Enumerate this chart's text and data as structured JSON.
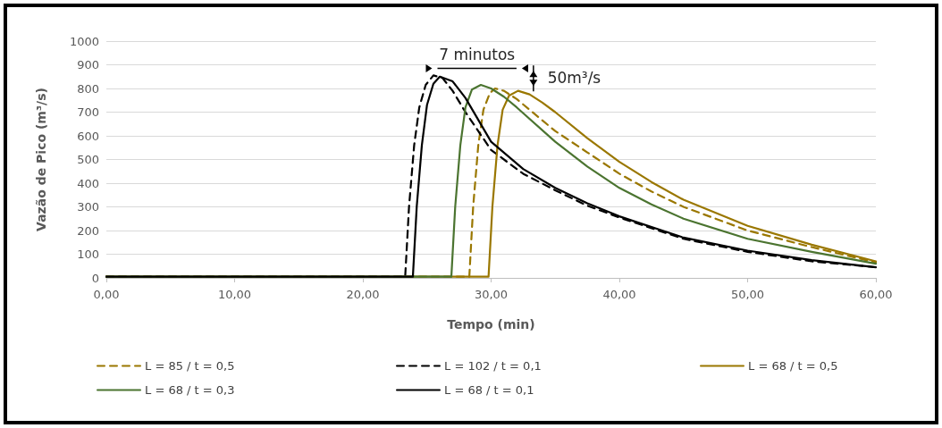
{
  "chart_data": {
    "type": "line",
    "xlabel": "Tempo (min)",
    "ylabel": "Vazão de Pico (m³/s)",
    "xlim": [
      0,
      60
    ],
    "xticks": [
      {
        "value": 0,
        "label": "0,00"
      },
      {
        "value": 10,
        "label": "10,00"
      },
      {
        "value": 20,
        "label": "20,00"
      },
      {
        "value": 30,
        "label": "30,00"
      },
      {
        "value": 40,
        "label": "40,00"
      },
      {
        "value": 50,
        "label": "50,00"
      },
      {
        "value": 60,
        "label": "60,00"
      }
    ],
    "ylim": [
      0,
      1000
    ],
    "yticks": [
      0,
      100,
      200,
      300,
      400,
      500,
      600,
      700,
      800,
      900,
      1000
    ],
    "grid": "y",
    "legend": "bottom",
    "marker": "none",
    "annotations": [
      "7 minutos",
      "50m³/s"
    ],
    "series": [
      {
        "name": "L = 85 / t = 0,5",
        "color": "#9a7700",
        "line_style": "dashed",
        "x": [
          0,
          28.3,
          28.6,
          29.0,
          29.4,
          29.9,
          30.3,
          31.0,
          32.0,
          33.0,
          35.0,
          37.5,
          40.0,
          42.5,
          45.0,
          50.0,
          55.0,
          60.0
        ],
        "values": [
          5,
          5,
          300,
          560,
          710,
          780,
          800,
          790,
          755,
          710,
          620,
          530,
          440,
          365,
          300,
          200,
          130,
          65
        ]
      },
      {
        "name": "L = 102 / t = 0,1",
        "color": "#000000",
        "line_style": "dashed",
        "x": [
          0,
          23.3,
          23.6,
          24.0,
          24.4,
          24.9,
          25.5,
          26.2,
          27.0,
          28.0,
          30.0,
          32.5,
          35.0,
          37.5,
          40.0,
          45.0,
          50.0,
          55.0,
          60.0
        ],
        "values": [
          5,
          5,
          300,
          560,
          720,
          815,
          855,
          845,
          790,
          700,
          540,
          440,
          370,
          305,
          255,
          165,
          110,
          70,
          45
        ]
      },
      {
        "name": "L = 68 / t = 0,5",
        "color": "#9a7700",
        "line_style": "solid",
        "x": [
          0,
          29.8,
          30.1,
          30.5,
          30.9,
          31.4,
          32.1,
          33.0,
          34.0,
          35.0,
          37.5,
          40.0,
          42.5,
          45.0,
          50.0,
          55.0,
          60.0
        ],
        "values": [
          5,
          5,
          300,
          560,
          710,
          770,
          790,
          775,
          740,
          700,
          590,
          490,
          405,
          330,
          220,
          140,
          70
        ]
      },
      {
        "name": "L = 68 / t = 0,3",
        "color": "#4b7430",
        "line_style": "solid",
        "x": [
          0,
          26.9,
          27.2,
          27.6,
          28.0,
          28.5,
          29.2,
          30.0,
          31.0,
          32.0,
          35.0,
          37.5,
          40.0,
          42.5,
          45.0,
          50.0,
          55.0,
          60.0
        ],
        "values": [
          5,
          5,
          300,
          560,
          720,
          795,
          815,
          800,
          765,
          720,
          575,
          470,
          380,
          310,
          250,
          165,
          110,
          60
        ]
      },
      {
        "name": "L = 68 / t = 0,1",
        "color": "#000000",
        "line_style": "solid",
        "x": [
          0,
          23.9,
          24.2,
          24.6,
          25.0,
          25.5,
          26.0,
          27.0,
          28.0,
          30.0,
          32.5,
          35.0,
          37.5,
          40.0,
          45.0,
          50.0,
          55.0,
          60.0
        ],
        "values": [
          5,
          5,
          300,
          560,
          730,
          820,
          850,
          830,
          760,
          575,
          460,
          380,
          315,
          260,
          170,
          115,
          75,
          45
        ]
      }
    ]
  }
}
